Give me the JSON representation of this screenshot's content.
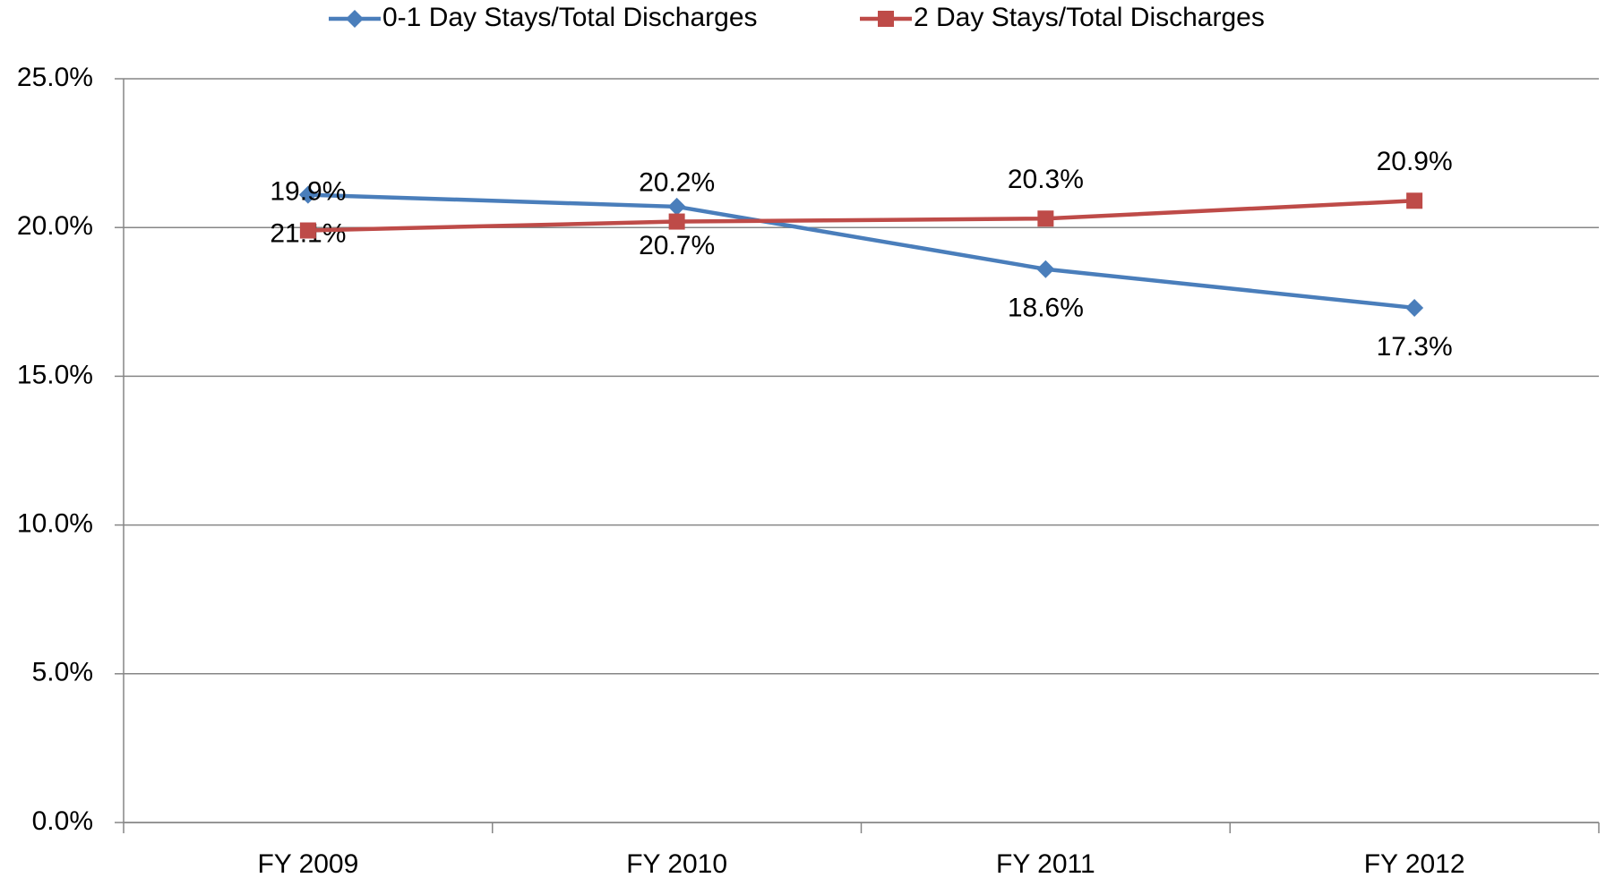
{
  "chart_data": {
    "type": "line",
    "categories": [
      "FY 2009",
      "FY 2010",
      "FY 2011",
      "FY 2012"
    ],
    "series": [
      {
        "name": "0-1 Day Stays/Total Discharges",
        "color": "#4a7ebb",
        "marker": "diamond",
        "values": [
          21.1,
          20.7,
          18.6,
          17.3
        ],
        "value_labels": [
          "21.1%",
          "20.7%",
          "18.6%",
          "17.3%"
        ]
      },
      {
        "name": "2 Day Stays/Total Discharges",
        "color": "#be4b48",
        "marker": "square",
        "values": [
          19.9,
          20.2,
          20.3,
          20.9
        ],
        "value_labels": [
          "19.9%",
          "20.2%",
          "20.3%",
          "20.9%"
        ]
      }
    ],
    "ylim": [
      0,
      25
    ],
    "yticks": [
      {
        "value": 0,
        "label": "0.0%"
      },
      {
        "value": 5,
        "label": "5.0%"
      },
      {
        "value": 10,
        "label": "10.0%"
      },
      {
        "value": 15,
        "label": "15.0%"
      },
      {
        "value": 20,
        "label": "20.0%"
      },
      {
        "value": 25,
        "label": "25.0%"
      }
    ],
    "grid": true,
    "legend": "top"
  }
}
